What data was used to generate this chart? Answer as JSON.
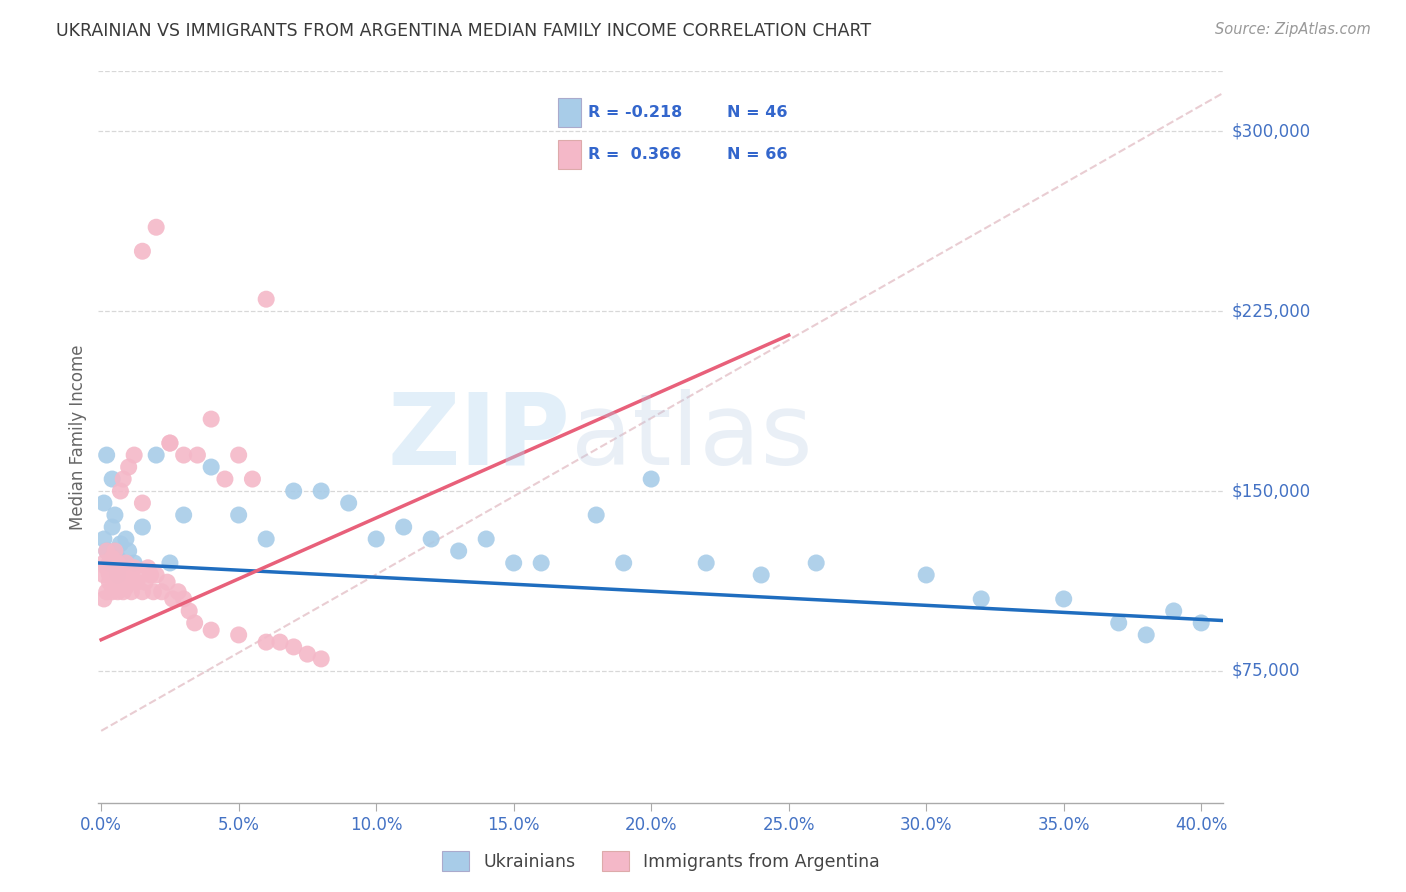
{
  "title": "UKRAINIAN VS IMMIGRANTS FROM ARGENTINA MEDIAN FAMILY INCOME CORRELATION CHART",
  "source": "Source: ZipAtlas.com",
  "ylabel": "Median Family Income",
  "yticks": [
    0,
    75000,
    150000,
    225000,
    300000
  ],
  "ytick_labels": [
    "",
    "$75,000",
    "$150,000",
    "$225,000",
    "$300,000"
  ],
  "ymax": 325000,
  "ymin": 20000,
  "xmin": -0.001,
  "xmax": 0.408,
  "legend_label1": "Ukrainians",
  "legend_label2": "Immigrants from Argentina",
  "watermark_zip": "ZIP",
  "watermark_atlas": "atlas",
  "blue_scatter_color": "#a8cce8",
  "pink_scatter_color": "#f4b8c8",
  "blue_line_color": "#1f6dbf",
  "pink_line_color": "#e8607a",
  "diag_line_color": "#e0b8c0",
  "title_color": "#3a3a3a",
  "source_color": "#999999",
  "axis_color": "#4472c4",
  "ylabel_color": "#666666",
  "grid_color": "#d8d8d8",
  "legend_text_color": "#3366cc",
  "blue_r_text": "R = -0.218",
  "blue_n_text": "N = 46",
  "pink_r_text": "R =  0.366",
  "pink_n_text": "N = 66",
  "ukr_trendline": [
    120000,
    96000
  ],
  "arg_trendline_x": [
    0.0,
    0.25
  ],
  "arg_trendline_y": [
    88000,
    215000
  ],
  "diag_line": [
    [
      0.0,
      0.408
    ],
    [
      50000,
      316000
    ]
  ],
  "ukrainian_x": [
    0.001,
    0.001,
    0.002,
    0.002,
    0.003,
    0.004,
    0.004,
    0.005,
    0.005,
    0.006,
    0.006,
    0.007,
    0.008,
    0.009,
    0.01,
    0.012,
    0.015,
    0.02,
    0.025,
    0.03,
    0.04,
    0.05,
    0.06,
    0.07,
    0.08,
    0.09,
    0.1,
    0.11,
    0.12,
    0.13,
    0.14,
    0.15,
    0.16,
    0.18,
    0.19,
    0.2,
    0.22,
    0.24,
    0.26,
    0.3,
    0.32,
    0.35,
    0.37,
    0.39,
    0.4,
    0.38
  ],
  "ukrainian_y": [
    130000,
    145000,
    125000,
    165000,
    120000,
    135000,
    155000,
    125000,
    140000,
    122000,
    115000,
    128000,
    120000,
    130000,
    125000,
    120000,
    135000,
    165000,
    120000,
    140000,
    160000,
    140000,
    130000,
    150000,
    150000,
    145000,
    130000,
    135000,
    130000,
    125000,
    130000,
    120000,
    120000,
    140000,
    120000,
    155000,
    120000,
    115000,
    120000,
    115000,
    105000,
    105000,
    95000,
    100000,
    95000,
    90000
  ],
  "argentina_x": [
    0.001,
    0.001,
    0.001,
    0.002,
    0.002,
    0.002,
    0.003,
    0.003,
    0.003,
    0.004,
    0.004,
    0.004,
    0.005,
    0.005,
    0.005,
    0.006,
    0.006,
    0.006,
    0.007,
    0.007,
    0.008,
    0.008,
    0.009,
    0.009,
    0.01,
    0.01,
    0.011,
    0.012,
    0.013,
    0.014,
    0.015,
    0.016,
    0.017,
    0.018,
    0.019,
    0.02,
    0.022,
    0.024,
    0.026,
    0.028,
    0.03,
    0.032,
    0.034,
    0.04,
    0.05,
    0.06,
    0.065,
    0.07,
    0.075,
    0.08,
    0.015,
    0.02,
    0.025,
    0.03,
    0.05,
    0.06,
    0.04,
    0.045,
    0.055,
    0.025,
    0.035,
    0.007,
    0.008,
    0.01,
    0.012,
    0.015
  ],
  "argentina_y": [
    120000,
    105000,
    115000,
    118000,
    108000,
    125000,
    120000,
    112000,
    115000,
    122000,
    118000,
    108000,
    115000,
    125000,
    110000,
    120000,
    115000,
    108000,
    118000,
    112000,
    115000,
    108000,
    120000,
    110000,
    115000,
    112000,
    108000,
    118000,
    112000,
    115000,
    108000,
    112000,
    118000,
    115000,
    108000,
    115000,
    108000,
    112000,
    105000,
    108000,
    105000,
    100000,
    95000,
    92000,
    90000,
    87000,
    87000,
    85000,
    82000,
    80000,
    250000,
    260000,
    170000,
    165000,
    165000,
    230000,
    180000,
    155000,
    155000,
    170000,
    165000,
    150000,
    155000,
    160000,
    165000,
    145000
  ]
}
